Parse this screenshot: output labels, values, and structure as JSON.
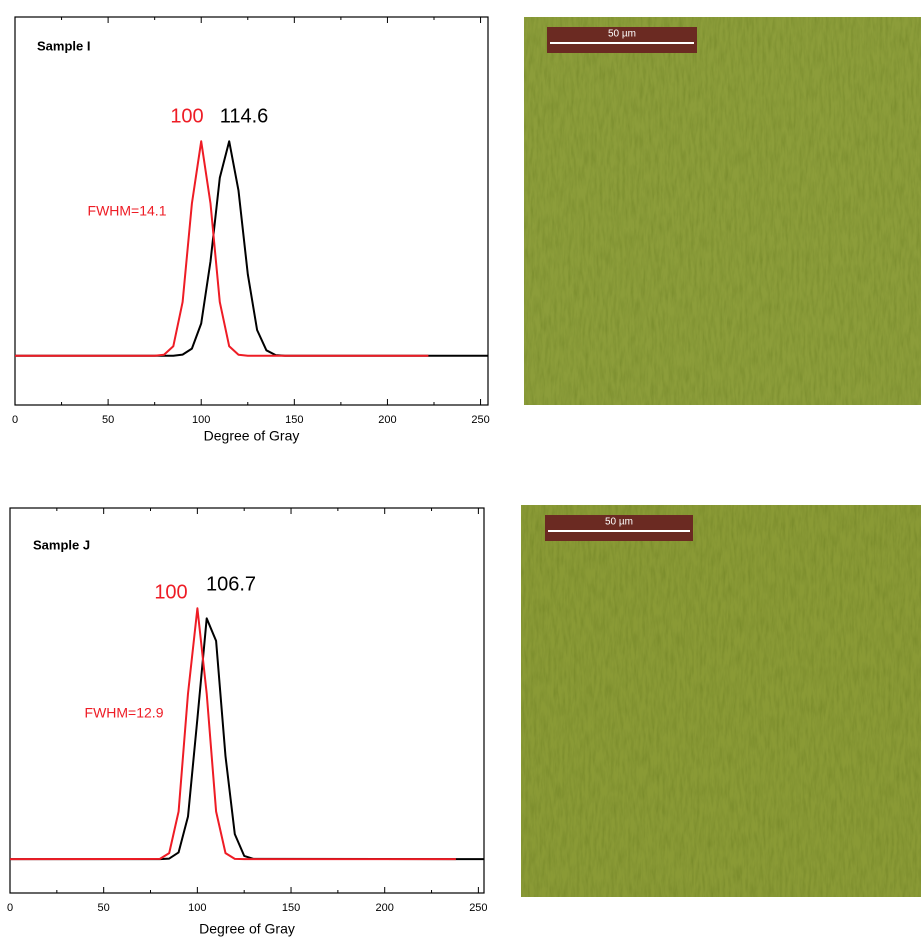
{
  "chart_data": [
    {
      "type": "line",
      "title": "Sample I",
      "x_label": "Degree of Gray",
      "xlim": [
        0,
        254
      ],
      "xticks": [
        0,
        50,
        100,
        150,
        200,
        250
      ],
      "ylim": [
        -0.23,
        1.58
      ],
      "x": [
        0,
        70,
        75,
        80,
        85,
        90,
        95,
        100,
        105,
        110,
        115,
        120,
        125,
        130,
        135,
        140,
        145,
        222,
        254
      ],
      "series": [
        {
          "color": "#000000",
          "values": [
            0,
            0,
            0,
            0,
            0,
            0.005,
            0.033,
            0.15,
            0.44,
            0.83,
            1.0,
            0.77,
            0.38,
            0.12,
            0.025,
            0.003,
            0,
            0,
            0
          ]
        },
        {
          "color": "#ee1c25",
          "values": [
            0,
            0,
            0,
            0.004,
            0.044,
            0.25,
            0.71,
            1.0,
            0.71,
            0.25,
            0.044,
            0.004,
            0,
            0,
            0,
            0,
            0,
            0,
            null
          ]
        }
      ],
      "annotations": [
        {
          "text": "100",
          "color": "#ee1c25"
        },
        {
          "text": "114.6",
          "color": "#000000"
        },
        {
          "text": "FWHM=14.1",
          "color": "#ee1c25"
        }
      ]
    },
    {
      "type": "line",
      "title": "Sample J",
      "x_label": "Degree of Gray",
      "xlim": [
        0,
        253
      ],
      "xticks": [
        0,
        50,
        100,
        150,
        200,
        250
      ],
      "ylim": [
        -0.135,
        1.4
      ],
      "x": [
        0,
        80,
        85,
        90,
        95,
        100,
        105,
        110,
        115,
        120,
        125,
        130,
        238,
        253
      ],
      "series": [
        {
          "color": "#000000",
          "values": [
            0,
            0,
            0.002,
            0.027,
            0.17,
            0.56,
            0.96,
            0.87,
            0.41,
            0.1,
            0.013,
            0.001,
            0,
            0
          ]
        },
        {
          "color": "#ee1c25",
          "values": [
            0,
            0.001,
            0.024,
            0.19,
            0.66,
            1.0,
            0.66,
            0.19,
            0.024,
            0.001,
            0,
            0,
            0,
            null
          ]
        }
      ],
      "annotations": [
        {
          "text": "100",
          "color": "#ee1c25"
        },
        {
          "text": "106.7",
          "color": "#000000"
        },
        {
          "text": "FWHM=12.9",
          "color": "#ee1c25"
        }
      ]
    }
  ],
  "micrographs": [
    {
      "scale_bar": "50 µm"
    },
    {
      "scale_bar": "50 µm"
    }
  ]
}
